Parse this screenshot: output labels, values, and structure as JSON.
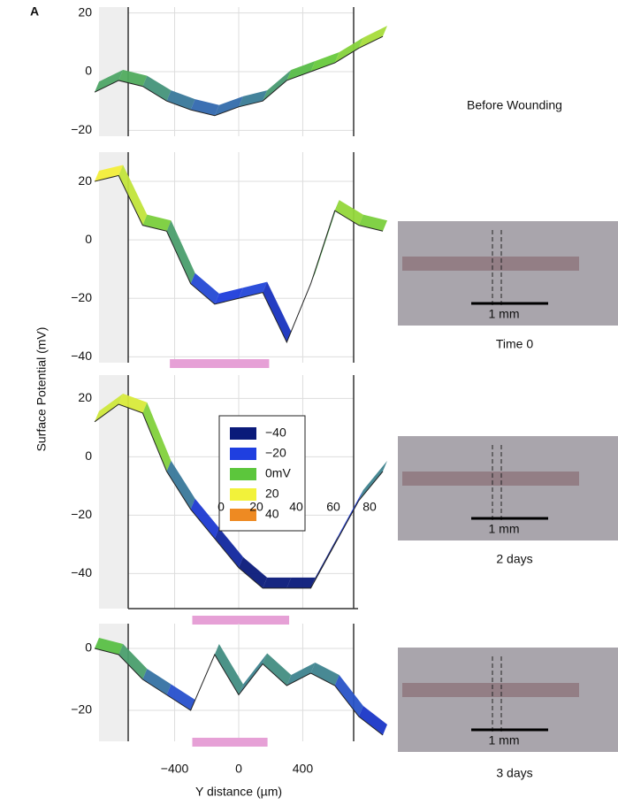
{
  "panel_label": "A",
  "y_axis_label": "Surface Potential (mV)",
  "legend": [
    {
      "value": -40,
      "label": "−40",
      "color": "#0a1a7a"
    },
    {
      "value": -20,
      "label": "−20",
      "color": "#1f3fe0"
    },
    {
      "value": 0,
      "label": "0mV",
      "color": "#5cc63c"
    },
    {
      "value": 20,
      "label": "20",
      "color": "#f2f23a"
    },
    {
      "value": 40,
      "label": "40",
      "color": "#ee8a22"
    }
  ],
  "depth_labels": [
    0,
    20,
    40,
    60,
    80
  ],
  "chart_data": [
    {
      "type": "line",
      "title": "Before Wounding",
      "x": [
        -900,
        -750,
        -600,
        -450,
        -300,
        -150,
        0,
        150,
        300,
        450,
        600,
        750,
        900
      ],
      "values": [
        -7,
        -3,
        -5,
        -10,
        -13,
        -15,
        -12,
        -10,
        -3,
        0,
        3,
        8,
        12
      ],
      "xlim": [
        -900,
        900
      ],
      "ylim": [
        -22,
        22
      ],
      "yticks": [
        20,
        0,
        {
          "value": -20,
          "label": "−20"
        }
      ]
    },
    {
      "type": "line",
      "title": "Time 0",
      "photo_scale": "1 mm",
      "x": [
        -900,
        -750,
        -600,
        -450,
        -300,
        -150,
        0,
        150,
        300,
        450,
        600,
        750,
        900
      ],
      "values": [
        20,
        22,
        5,
        3,
        -15,
        -22,
        -20,
        -18,
        -35,
        -15,
        10,
        5,
        3
      ],
      "xlim": [
        -900,
        900
      ],
      "ylim": [
        -42,
        30
      ],
      "yticks": [
        20,
        0,
        {
          "value": -20,
          "label": "−20"
        },
        {
          "value": -40,
          "label": "−40"
        }
      ],
      "wound": [
        -430,
        190
      ]
    },
    {
      "type": "line",
      "title": "2 days",
      "photo_scale": "1 mm",
      "x": [
        -900,
        -750,
        -600,
        -450,
        -300,
        -150,
        0,
        150,
        300,
        450,
        600,
        750,
        900
      ],
      "values": [
        12,
        18,
        15,
        -5,
        -18,
        -28,
        -38,
        -45,
        -45,
        -45,
        -30,
        -15,
        -5
      ],
      "xlim": [
        -900,
        900
      ],
      "ylim": [
        -52,
        28
      ],
      "yticks": [
        20,
        0,
        {
          "value": -20,
          "label": "−20"
        },
        {
          "value": -40,
          "label": "−40"
        }
      ],
      "wound": [
        -290,
        315
      ]
    },
    {
      "type": "line",
      "title": "3 days",
      "photo_scale": "1 mm",
      "x": [
        -900,
        -750,
        -600,
        -450,
        -300,
        -150,
        0,
        150,
        300,
        450,
        600,
        750,
        900
      ],
      "values": [
        0,
        -2,
        -10,
        -15,
        -20,
        -2,
        -15,
        -5,
        -12,
        -8,
        -12,
        -22,
        -28
      ],
      "xlim": [
        -900,
        900
      ],
      "ylim": [
        -30,
        8
      ],
      "yticks": [
        0,
        {
          "value": -20,
          "label": "−20"
        }
      ],
      "xticks": [
        {
          "value": -400,
          "label": "−400"
        },
        0,
        400
      ],
      "x_label": "Y distance (µm)",
      "wound": [
        -290,
        180
      ]
    }
  ]
}
